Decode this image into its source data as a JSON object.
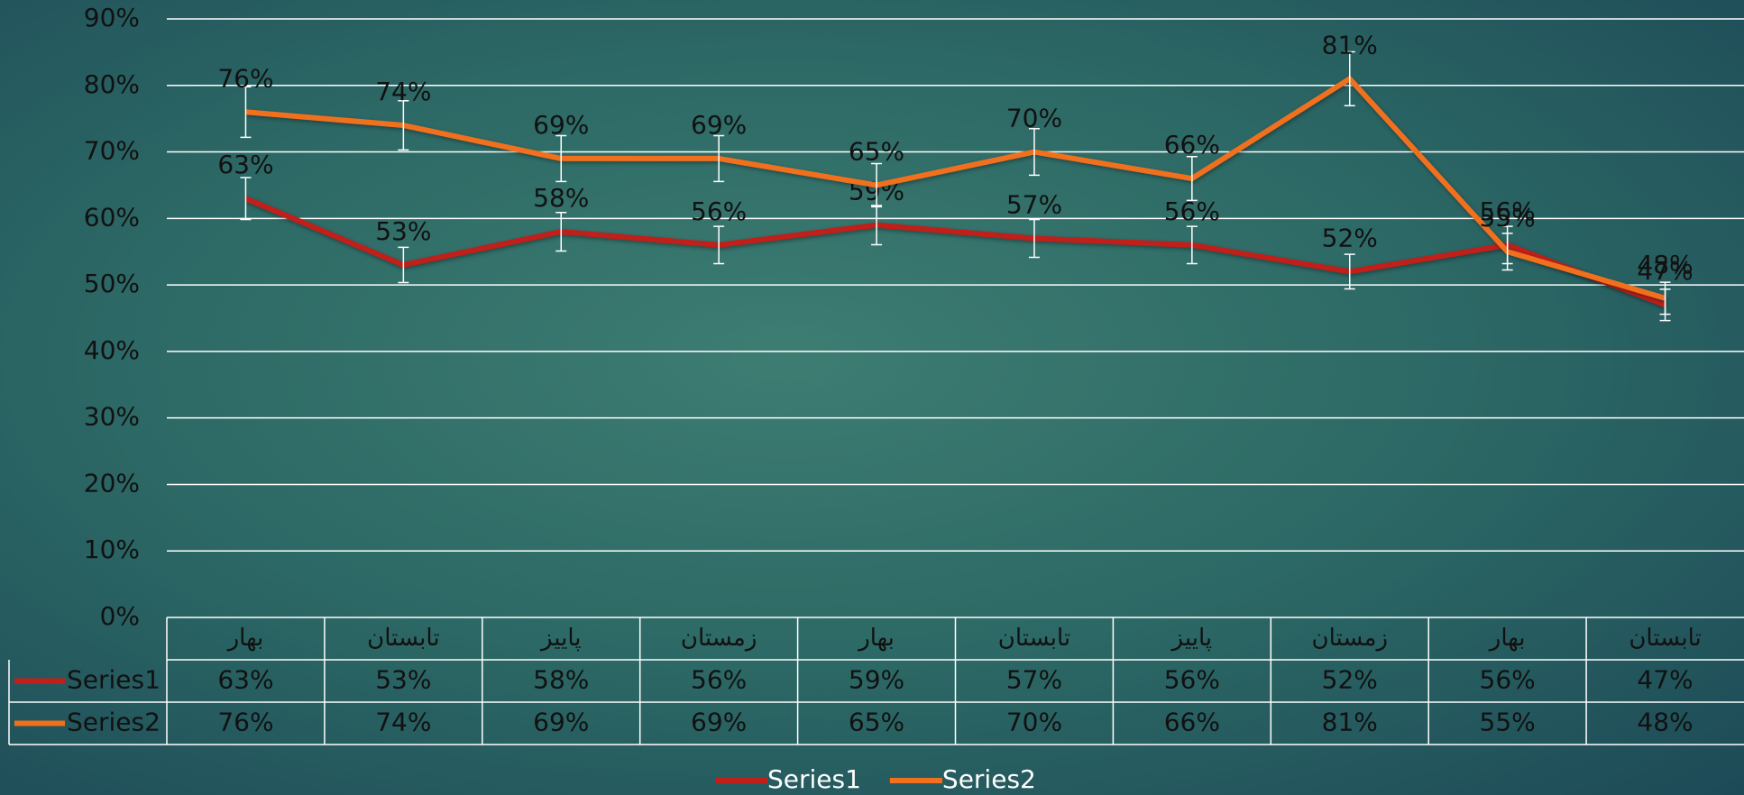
{
  "chart_data": {
    "type": "line",
    "categories": [
      "بهار",
      "تابستان",
      "پاییز",
      "زمستان",
      "بهار",
      "تابستان",
      "پاییز",
      "زمستان",
      "بهار",
      "تابستان"
    ],
    "series": [
      {
        "name": "Series1",
        "color": "#c01f1a",
        "values": [
          63,
          53,
          58,
          56,
          59,
          57,
          56,
          52,
          56,
          47
        ],
        "value_labels": [
          "63%",
          "53%",
          "58%",
          "56%",
          "59%",
          "57%",
          "56%",
          "52%",
          "56%",
          "47%"
        ],
        "errors": [
          3.15,
          2.65,
          2.9,
          2.8,
          2.95,
          2.85,
          2.8,
          2.6,
          2.8,
          2.35
        ]
      },
      {
        "name": "Series2",
        "color": "#f0701e",
        "values": [
          76,
          74,
          69,
          69,
          65,
          70,
          66,
          81,
          55,
          48
        ],
        "value_labels": [
          "76%",
          "74%",
          "69%",
          "69%",
          "65%",
          "70%",
          "66%",
          "81%",
          "55%",
          "48%"
        ],
        "errors": [
          3.8,
          3.7,
          3.45,
          3.45,
          3.25,
          3.5,
          3.3,
          4.05,
          2.75,
          2.4
        ]
      }
    ],
    "ylim": [
      0,
      90
    ],
    "yticks": [
      {
        "value": 0,
        "label": "0%"
      },
      {
        "value": 10,
        "label": "10%"
      },
      {
        "value": 20,
        "label": "20%"
      },
      {
        "value": 30,
        "label": "30%"
      },
      {
        "value": 40,
        "label": "40%"
      },
      {
        "value": 50,
        "label": "50%"
      },
      {
        "value": 60,
        "label": "60%"
      },
      {
        "value": 70,
        "label": "70%"
      },
      {
        "value": 80,
        "label": "80%"
      },
      {
        "value": 90,
        "label": "90%"
      }
    ],
    "grid": true,
    "legend": "bottom",
    "data_table": true
  }
}
